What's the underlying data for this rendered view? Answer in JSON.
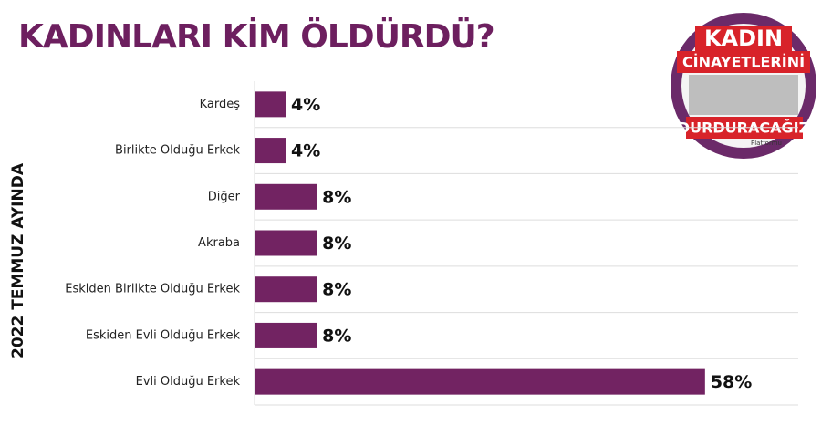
{
  "chart_data": {
    "type": "hbar",
    "title": "KADINLARI KİM ÖLDÜRDÜ?",
    "y_label": "2022 TEMMUZ AYINDA",
    "categories": [
      "Kardeş",
      "Birlikte Olduğu Erkek",
      "Diğer",
      "Akraba",
      "Eskiden Birlikte Olduğu Erkek",
      "Eskiden Evli Olduğu Erkek",
      "Evli Olduğu Erkek"
    ],
    "values": [
      4,
      4,
      8,
      8,
      8,
      8,
      58
    ],
    "value_labels": [
      "4%",
      "4%",
      "8%",
      "8%",
      "8%",
      "8%",
      "58%"
    ],
    "color": "#722362",
    "xlim": [
      0,
      70
    ]
  },
  "logo": {
    "line1": "KADIN",
    "line2": "CİNAYETLERİNİ",
    "line3": "DURDURACAĞIZ",
    "line4": "Platformu"
  }
}
